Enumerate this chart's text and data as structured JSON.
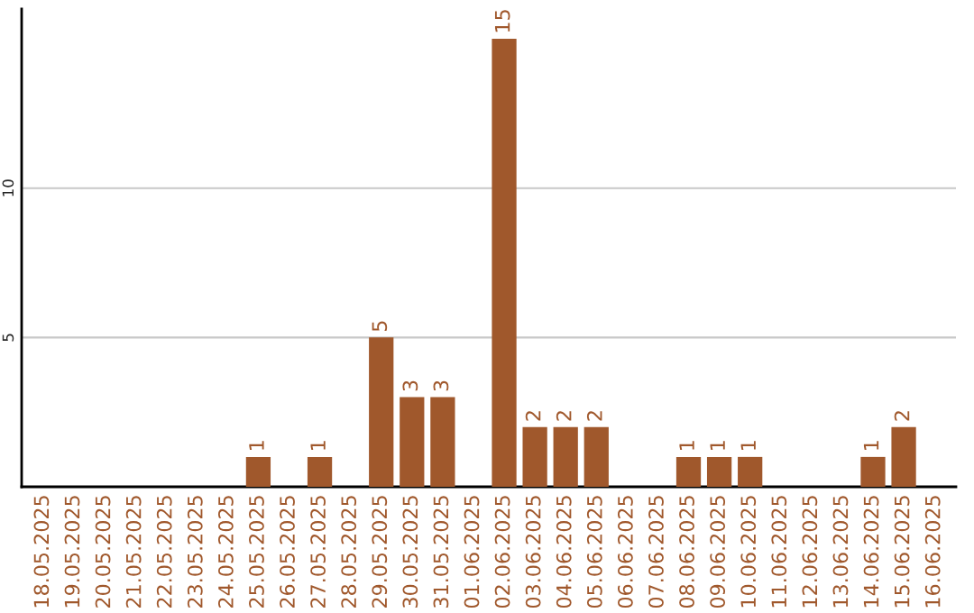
{
  "chart_data": {
    "type": "bar",
    "categories": [
      "18.05.2025",
      "19.05.2025",
      "20.05.2025",
      "21.05.2025",
      "22.05.2025",
      "23.05.2025",
      "24.05.2025",
      "25.05.2025",
      "26.05.2025",
      "27.05.2025",
      "28.05.2025",
      "29.05.2025",
      "30.05.2025",
      "31.05.2025",
      "01.06.2025",
      "02.06.2025",
      "03.06.2025",
      "04.06.2025",
      "05.06.2025",
      "06.06.2025",
      "07.06.2025",
      "08.06.2025",
      "09.06.2025",
      "10.06.2025",
      "11.06.2025",
      "12.06.2025",
      "13.06.2025",
      "14.06.2025",
      "15.06.2025",
      "16.06.2025"
    ],
    "values": [
      0,
      0,
      0,
      0,
      0,
      0,
      0,
      1,
      0,
      1,
      0,
      5,
      3,
      3,
      0,
      15,
      2,
      2,
      2,
      0,
      0,
      1,
      1,
      1,
      0,
      0,
      0,
      1,
      2,
      0
    ],
    "value_labels": [
      null,
      null,
      null,
      null,
      null,
      null,
      null,
      "1",
      null,
      "1",
      null,
      "5",
      "3",
      "3",
      null,
      "15",
      "2",
      "2",
      "2",
      null,
      null,
      "1",
      "1",
      "1",
      null,
      null,
      null,
      "1",
      "2",
      null
    ],
    "color": "#a0582c",
    "ylim": [
      0,
      16
    ],
    "yticks": [
      5,
      10
    ],
    "grid": "y"
  }
}
